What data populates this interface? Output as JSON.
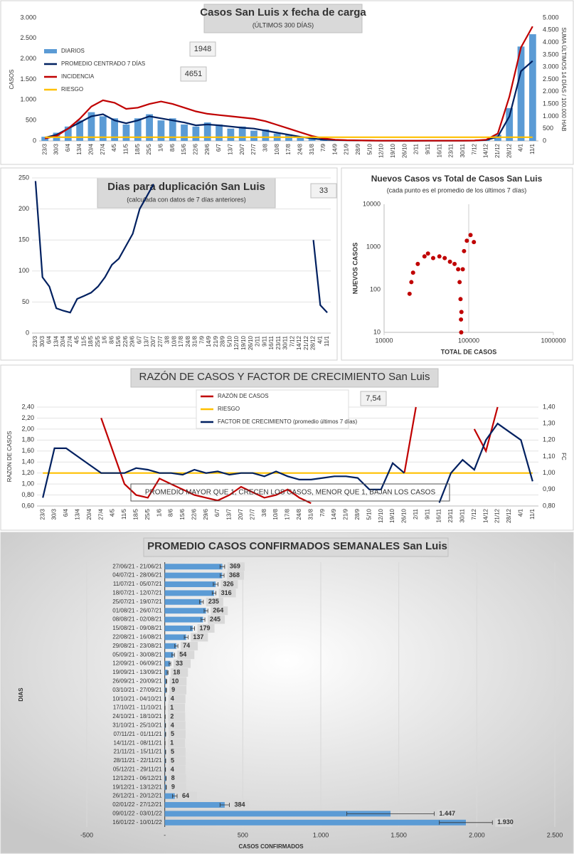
{
  "chart_data": [
    {
      "type": "bar",
      "title": "Casos San Luis x fecha de carga",
      "subtitle": "(ÚLTIMOS 300 DÍAS)",
      "y_label": "CASOS",
      "y2_label": "SUMA  ÚLTIMOS 14 DÍAS / 100.000 HAB",
      "legend": "upper left",
      "annotations": [
        "1948",
        "4651"
      ],
      "categories": [
        "23/3",
        "30/3",
        "6/4",
        "13/4",
        "20/4",
        "27/4",
        "4/5",
        "11/5",
        "18/5",
        "25/5",
        "1/6",
        "8/6",
        "15/6",
        "22/6",
        "29/6",
        "6/7",
        "13/7",
        "20/7",
        "27/7",
        "3/8",
        "10/8",
        "17/8",
        "24/8",
        "31/8",
        "7/9",
        "14/9",
        "21/9",
        "28/9",
        "5/10",
        "12/10",
        "19/10",
        "26/10",
        "2/11",
        "9/11",
        "16/11",
        "23/11",
        "30/11",
        "7/12",
        "14/12",
        "21/12",
        "28/12",
        "4/1",
        "11/1"
      ],
      "ylim": [
        0,
        3000
      ],
      "yticks": [
        0,
        500,
        {
          "value": 1000,
          "label": "1.000"
        },
        {
          "value": 1500,
          "label": "1.500"
        },
        {
          "value": 2000,
          "label": "2.000"
        },
        {
          "value": 2500,
          "label": "2.500"
        },
        {
          "value": 3000,
          "label": "3.000"
        }
      ],
      "y2lim": [
        0,
        5000
      ],
      "y2ticks": [
        0,
        500,
        {
          "value": 1000,
          "label": "1.000"
        },
        {
          "value": 1500,
          "label": "1.500"
        },
        {
          "value": 2000,
          "label": "2.000"
        },
        {
          "value": 2500,
          "label": "2.500"
        },
        {
          "value": 3000,
          "label": "3.000"
        },
        {
          "value": 3500,
          "label": "3.500"
        },
        {
          "value": 4000,
          "label": "4.000"
        },
        {
          "value": 4500,
          "label": "4.500"
        },
        {
          "value": 5000,
          "label": "5.000"
        }
      ],
      "series": [
        {
          "name": "DIARIOS",
          "type": "bar",
          "color": "#5b9bd5",
          "values": [
            100,
            200,
            350,
            500,
            700,
            600,
            550,
            400,
            550,
            650,
            500,
            550,
            400,
            350,
            450,
            400,
            300,
            350,
            250,
            280,
            180,
            160,
            90,
            50,
            25,
            20,
            12,
            10,
            6,
            5,
            4,
            3,
            4,
            6,
            5,
            4,
            7,
            9,
            30,
            150,
            800,
            2300,
            2600
          ]
        },
        {
          "name": "PROMEDIO CENTRADO 7 DÍAS",
          "type": "line",
          "color": "#002060",
          "values": [
            80,
            150,
            300,
            450,
            600,
            650,
            500,
            430,
            500,
            600,
            550,
            500,
            450,
            380,
            400,
            380,
            350,
            320,
            300,
            250,
            200,
            150,
            100,
            60,
            30,
            20,
            15,
            10,
            8,
            5,
            5,
            4,
            4,
            5,
            5,
            5,
            6,
            8,
            20,
            100,
            600,
            1700,
            1948
          ]
        },
        {
          "name": "INCIDENCIA",
          "type": "line",
          "axis": "y2",
          "color": "#c00000",
          "values": [
            100,
            200,
            500,
            900,
            1400,
            1650,
            1550,
            1300,
            1350,
            1500,
            1600,
            1500,
            1350,
            1200,
            1100,
            1050,
            1000,
            950,
            900,
            800,
            650,
            500,
            350,
            200,
            100,
            50,
            30,
            20,
            15,
            10,
            10,
            8,
            8,
            8,
            8,
            8,
            10,
            15,
            50,
            300,
            1800,
            3800,
            4651
          ]
        },
        {
          "name": "RIESGO",
          "type": "line",
          "axis": "y2",
          "color": "#ffc000",
          "values": [
            150,
            150,
            150,
            150,
            150,
            150,
            150,
            150,
            150,
            150,
            150,
            150,
            150,
            150,
            150,
            150,
            150,
            150,
            150,
            150,
            150,
            150,
            150,
            150,
            150,
            150,
            150,
            150,
            150,
            150,
            150,
            150,
            150,
            150,
            150,
            150,
            150,
            150,
            150,
            150,
            150,
            150,
            150
          ]
        }
      ]
    },
    {
      "type": "line",
      "title": "Dias para duplicación San Luis",
      "subtitle": "(calculada con datos de 7 días anteriores)",
      "annotations": [
        "33"
      ],
      "categories": [
        "23/3",
        "30/3",
        "6/4",
        "13/4",
        "20/4",
        "27/4",
        "4/5",
        "11/5",
        "18/5",
        "25/5",
        "1/6",
        "8/6",
        "15/6",
        "22/6",
        "29/6",
        "6/7",
        "13/7",
        "20/7",
        "27/7",
        "3/8",
        "10/8",
        "17/8",
        "24/8",
        "31/8",
        "7/9",
        "14/9",
        "21/9",
        "28/9",
        "5/10",
        "12/10",
        "19/10",
        "26/10",
        "2/11",
        "9/11",
        "16/11",
        "23/11",
        "30/11",
        "7/12",
        "14/12",
        "21/12",
        "28/12",
        "4/1",
        "11/1"
      ],
      "ylim": [
        0,
        250
      ],
      "yticks": [
        0,
        50,
        100,
        150,
        200,
        250
      ],
      "series": [
        {
          "color": "#002060",
          "values": [
            245,
            90,
            75,
            40,
            36,
            33,
            55,
            60,
            65,
            75,
            90,
            110,
            120,
            140,
            160,
            200,
            220,
            240,
            null,
            null,
            null,
            null,
            null,
            null,
            null,
            null,
            null,
            null,
            null,
            null,
            null,
            null,
            null,
            null,
            null,
            null,
            null,
            null,
            null,
            null,
            150,
            45,
            33
          ]
        }
      ]
    },
    {
      "type": "scatter",
      "title": "Nuevos Casos vs Total de Casos San Luis",
      "subtitle": "(cada punto es el promedio de los últimos 7 días)",
      "x_label": "TOTAL DE CASOS",
      "y_label": "NUEVOS CASOS",
      "xlog": true,
      "ylog": true,
      "color": "#c00000",
      "xlim": [
        10000,
        1000000
      ],
      "xticks": [
        10000,
        100000,
        1000000
      ],
      "ylim": [
        10,
        10000
      ],
      "yticks": [
        10,
        100,
        1000,
        10000
      ],
      "x": [
        20000,
        21000,
        22000,
        25000,
        30000,
        33000,
        38000,
        45000,
        52000,
        60000,
        68000,
        75000,
        78000,
        80000,
        81000,
        81500,
        82000,
        85000,
        88000,
        95000,
        105000,
        115000
      ],
      "values": [
        80,
        150,
        250,
        400,
        600,
        700,
        550,
        600,
        550,
        450,
        400,
        300,
        150,
        60,
        20,
        10,
        30,
        300,
        800,
        1400,
        1900,
        1300
      ]
    },
    {
      "type": "line",
      "title": "RAZÓN DE CASOS Y FACTOR DE CRECIMIENTO San Luis",
      "y_label": "RAZON DE CASOS",
      "y2_label": "FC",
      "legend": "upper center",
      "annotations": [
        "7,54"
      ],
      "note": "PROMEDIO MAYOR QUE 1, CRECEN LOS CASOS, MENOR QUE 1, BAJAN LOS CASOS",
      "categories": [
        "23/3",
        "30/3",
        "6/4",
        "13/4",
        "20/4",
        "27/4",
        "4/5",
        "11/5",
        "18/5",
        "25/5",
        "1/6",
        "8/6",
        "15/6",
        "22/6",
        "29/6",
        "6/7",
        "13/7",
        "20/7",
        "27/7",
        "3/8",
        "10/8",
        "17/8",
        "24/8",
        "31/8",
        "7/9",
        "14/9",
        "21/9",
        "28/9",
        "5/10",
        "12/10",
        "19/10",
        "26/10",
        "2/11",
        "9/11",
        "16/11",
        "23/11",
        "30/11",
        "7/12",
        "14/12",
        "21/12",
        "28/12",
        "4/1",
        "11/1"
      ],
      "ylim": [
        0.6,
        2.4
      ],
      "yticks": [
        {
          "value": 0.6,
          "label": "0,60"
        },
        {
          "value": 0.8,
          "label": "0,80"
        },
        {
          "value": 1.0,
          "label": "1,00"
        },
        {
          "value": 1.2,
          "label": "1,20"
        },
        {
          "value": 1.4,
          "label": "1,40"
        },
        {
          "value": 1.6,
          "label": "1,60"
        },
        {
          "value": 1.8,
          "label": "1,80"
        },
        {
          "value": 2.0,
          "label": "2,00"
        },
        {
          "value": 2.2,
          "label": "2,20"
        },
        {
          "value": 2.4,
          "label": "2,40"
        }
      ],
      "y2lim": [
        0.8,
        1.4
      ],
      "y2ticks": [
        {
          "value": 0.8,
          "label": "0,80"
        },
        {
          "value": 0.9,
          "label": "0,90"
        },
        {
          "value": 1.0,
          "label": "1,00"
        },
        {
          "value": 1.1,
          "label": "1,10"
        },
        {
          "value": 1.2,
          "label": "1,20"
        },
        {
          "value": 1.3,
          "label": "1,30"
        },
        {
          "value": 1.4,
          "label": "1,40"
        }
      ],
      "series": [
        {
          "name": "RAZÓN DE CASOS",
          "color": "#c00000",
          "values": [
            null,
            0.7,
            null,
            null,
            null,
            2.2,
            1.6,
            1.0,
            0.8,
            0.75,
            1.1,
            1.0,
            0.9,
            0.8,
            0.75,
            0.7,
            0.8,
            0.95,
            0.85,
            0.75,
            0.8,
            0.9,
            0.75,
            0.65,
            null,
            null,
            null,
            null,
            null,
            null,
            null,
            1.2,
            2.4,
            null,
            null,
            1.2,
            null,
            2.0,
            1.6,
            2.4,
            null,
            null,
            null
          ]
        },
        {
          "name": "RIESGO",
          "color": "#ffc000",
          "values": [
            1.2,
            1.2,
            1.2,
            1.2,
            1.2,
            1.2,
            1.2,
            1.2,
            1.2,
            1.2,
            1.2,
            1.2,
            1.2,
            1.2,
            1.2,
            1.2,
            1.2,
            1.2,
            1.2,
            1.2,
            1.2,
            1.2,
            1.2,
            1.2,
            1.2,
            1.2,
            1.2,
            1.2,
            1.2,
            1.2,
            1.2,
            1.2,
            1.2,
            1.2,
            1.2,
            1.2,
            1.2,
            1.2,
            1.2,
            1.2,
            1.2,
            1.2,
            1.2
          ]
        },
        {
          "name": "FACTOR DE CRECIMIENTO (promedio últimos 7 días)",
          "axis": "y2",
          "color": "#002060",
          "values": [
            0.85,
            1.15,
            1.15,
            1.1,
            1.05,
            1.0,
            1.0,
            1.0,
            1.03,
            1.02,
            1.0,
            1.0,
            0.99,
            1.02,
            1.0,
            1.01,
            0.99,
            1.0,
            1.0,
            0.98,
            1.01,
            0.98,
            0.96,
            0.96,
            0.97,
            0.98,
            0.98,
            0.97,
            0.9,
            0.9,
            1.06,
            1.0,
            null,
            null,
            0.82,
            1.0,
            1.08,
            1.02,
            1.2,
            1.3,
            1.25,
            1.2,
            0.95
          ]
        }
      ]
    },
    {
      "type": "bar",
      "orientation": "horizontal",
      "title": "PROMEDIO CASOS CONFIRMADOS SEMANALES San Luis",
      "x_label": "CASOS CONFIRMADOS",
      "y_label": "DIAS",
      "color": "#5b9bd5",
      "grid": true,
      "categories": [
        "27/06/21 - 21/06/21",
        "04/07/21 - 28/06/21",
        "11/07/21 - 05/07/21",
        "18/07/21 - 12/07/21",
        "25/07/21 - 19/07/21",
        "01/08/21 - 26/07/21",
        "08/08/21 - 02/08/21",
        "15/08/21 - 09/08/21",
        "22/08/21 - 16/08/21",
        "29/08/21 - 23/08/21",
        "05/09/21 - 30/08/21",
        "12/09/21 - 06/09/21",
        "19/09/21 - 13/09/21",
        "26/09/21 - 20/09/21",
        "03/10/21 - 27/09/21",
        "10/10/21 - 04/10/21",
        "17/10/21 - 11/10/21",
        "24/10/21 - 18/10/21",
        "31/10/21 - 25/10/21",
        "07/11/21 - 01/11/21",
        "14/11/21 - 08/11/21",
        "21/11/21 - 15/11/21",
        "28/11/21 - 22/11/21",
        "05/12/21 - 29/11/21",
        "12/12/21 - 06/12/21",
        "19/12/21 - 13/12/21",
        "26/12/21 - 20/12/21",
        "02/01/22 - 27/12/21",
        "09/01/22 - 03/01/22",
        "16/01/22 - 10/01/22"
      ],
      "values": [
        369,
        368,
        326,
        316,
        235,
        264,
        245,
        179,
        137,
        74,
        54,
        33,
        18,
        10,
        9,
        4,
        1,
        2,
        4,
        5,
        1,
        5,
        5,
        4,
        8,
        9,
        64,
        384,
        1447,
        1930
      ],
      "value_labels": [
        "369",
        "368",
        "326",
        "316",
        "235",
        "264",
        "245",
        "179",
        "137",
        "74",
        "54",
        "33",
        "18",
        "10",
        "9",
        "4",
        "1",
        "2",
        "4",
        "5",
        "1",
        "5",
        "5",
        "4",
        "8",
        "9",
        "64",
        "384",
        "1.447",
        "1.930"
      ],
      "errors": [
        15,
        12,
        15,
        12,
        12,
        12,
        12,
        12,
        12,
        10,
        8,
        5,
        3,
        2,
        2,
        1,
        1,
        1,
        1,
        1,
        1,
        1,
        1,
        1,
        1,
        1,
        15,
        30,
        280,
        170
      ],
      "xlim": [
        -500,
        2500
      ],
      "xticks": [
        -500,
        {
          "value": 0,
          "label": "-"
        },
        500,
        {
          "value": 1000,
          "label": "1.000"
        },
        {
          "value": 1500,
          "label": "1.500"
        },
        {
          "value": 2000,
          "label": "2.000"
        },
        {
          "value": 2500,
          "label": "2.500"
        }
      ]
    }
  ]
}
